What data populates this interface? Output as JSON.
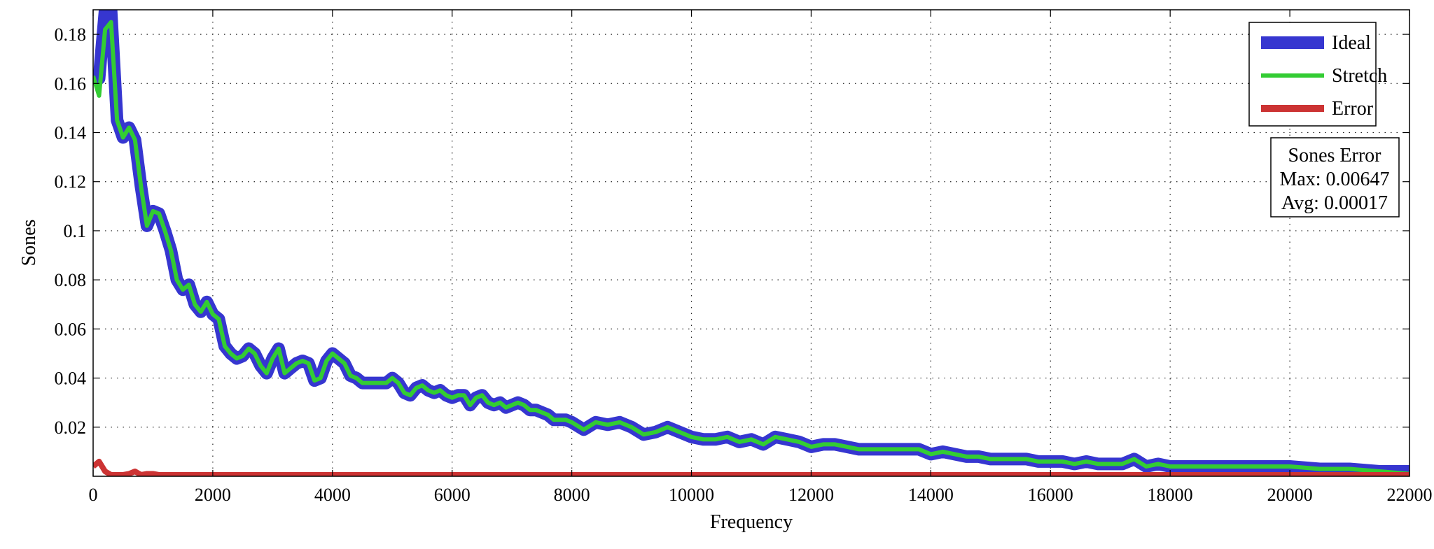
{
  "chart_data": {
    "type": "line",
    "xlabel": "Frequency",
    "ylabel": "Sones",
    "xlim": [
      0,
      22000
    ],
    "ylim": [
      0,
      0.19
    ],
    "grid": true,
    "legend_position": "top-right",
    "x_ticks": [
      0,
      2000,
      4000,
      6000,
      8000,
      10000,
      12000,
      14000,
      16000,
      18000,
      20000,
      22000
    ],
    "x_tick_labels": [
      "0",
      "2000",
      "4000",
      "6000",
      "8000",
      "10000",
      "12000",
      "14000",
      "16000",
      "18000",
      "20000",
      "22000"
    ],
    "y_ticks": [
      0.02,
      0.04,
      0.06,
      0.08,
      0.1,
      0.12,
      0.14,
      0.16,
      0.18
    ],
    "y_tick_labels": [
      "0.02",
      "0.04",
      "0.06",
      "0.08",
      "0.1",
      "0.12",
      "0.14",
      "0.16",
      "0.18"
    ],
    "x": [
      0,
      100,
      200,
      300,
      400,
      500,
      600,
      700,
      800,
      900,
      1000,
      1100,
      1200,
      1300,
      1400,
      1500,
      1600,
      1700,
      1800,
      1900,
      2000,
      2100,
      2200,
      2300,
      2400,
      2500,
      2600,
      2700,
      2800,
      2900,
      3000,
      3100,
      3200,
      3300,
      3400,
      3500,
      3600,
      3700,
      3800,
      3900,
      4000,
      4100,
      4200,
      4300,
      4400,
      4500,
      4600,
      4700,
      4800,
      4900,
      5000,
      5100,
      5200,
      5300,
      5400,
      5500,
      5600,
      5700,
      5800,
      5900,
      6000,
      6100,
      6200,
      6300,
      6400,
      6500,
      6600,
      6700,
      6800,
      6900,
      7000,
      7100,
      7200,
      7300,
      7400,
      7500,
      7600,
      7700,
      7800,
      7900,
      8000,
      8200,
      8400,
      8600,
      8800,
      9000,
      9200,
      9400,
      9600,
      9800,
      10000,
      10200,
      10400,
      10600,
      10800,
      11000,
      11200,
      11400,
      11600,
      11800,
      12000,
      12200,
      12400,
      12600,
      12800,
      13000,
      13200,
      13400,
      13600,
      13800,
      14000,
      14200,
      14400,
      14600,
      14800,
      15000,
      15200,
      15400,
      15600,
      15800,
      16000,
      16200,
      16400,
      16600,
      16800,
      17000,
      17200,
      17400,
      17600,
      17800,
      18000,
      18500,
      19000,
      19500,
      20000,
      20500,
      21000,
      21500,
      22000
    ],
    "series": [
      {
        "name": "Ideal",
        "color": "#3636d0",
        "values": [
          0.163,
          0.162,
          0.19,
          0.19,
          0.145,
          0.138,
          0.142,
          0.137,
          0.118,
          0.102,
          0.108,
          0.107,
          0.1,
          0.092,
          0.08,
          0.076,
          0.078,
          0.07,
          0.067,
          0.071,
          0.066,
          0.064,
          0.053,
          0.05,
          0.048,
          0.049,
          0.052,
          0.05,
          0.045,
          0.042,
          0.048,
          0.052,
          0.042,
          0.044,
          0.046,
          0.047,
          0.046,
          0.039,
          0.04,
          0.047,
          0.05,
          0.048,
          0.046,
          0.041,
          0.04,
          0.038,
          0.038,
          0.038,
          0.038,
          0.038,
          0.04,
          0.038,
          0.034,
          0.033,
          0.036,
          0.037,
          0.035,
          0.034,
          0.035,
          0.033,
          0.032,
          0.033,
          0.033,
          0.029,
          0.032,
          0.033,
          0.03,
          0.029,
          0.03,
          0.028,
          0.029,
          0.03,
          0.029,
          0.027,
          0.027,
          0.026,
          0.025,
          0.023,
          0.023,
          0.023,
          0.022,
          0.019,
          0.022,
          0.021,
          0.022,
          0.02,
          0.017,
          0.018,
          0.02,
          0.018,
          0.016,
          0.015,
          0.015,
          0.016,
          0.014,
          0.015,
          0.013,
          0.016,
          0.015,
          0.014,
          0.012,
          0.013,
          0.013,
          0.012,
          0.011,
          0.011,
          0.011,
          0.011,
          0.011,
          0.011,
          0.009,
          0.01,
          0.009,
          0.008,
          0.008,
          0.007,
          0.007,
          0.007,
          0.007,
          0.006,
          0.006,
          0.006,
          0.005,
          0.006,
          0.005,
          0.005,
          0.005,
          0.007,
          0.004,
          0.005,
          0.004,
          0.004,
          0.004,
          0.004,
          0.004,
          0.003,
          0.003,
          0.002,
          0.002
        ]
      },
      {
        "name": "Stretch",
        "color": "#33cc33",
        "values": [
          0.163,
          0.155,
          0.182,
          0.185,
          0.145,
          0.138,
          0.142,
          0.137,
          0.118,
          0.102,
          0.108,
          0.107,
          0.1,
          0.092,
          0.08,
          0.076,
          0.078,
          0.07,
          0.067,
          0.071,
          0.066,
          0.064,
          0.053,
          0.05,
          0.048,
          0.049,
          0.052,
          0.05,
          0.045,
          0.042,
          0.048,
          0.052,
          0.042,
          0.044,
          0.046,
          0.047,
          0.046,
          0.039,
          0.04,
          0.047,
          0.05,
          0.048,
          0.046,
          0.041,
          0.04,
          0.038,
          0.038,
          0.038,
          0.038,
          0.038,
          0.04,
          0.038,
          0.034,
          0.033,
          0.036,
          0.037,
          0.035,
          0.034,
          0.035,
          0.033,
          0.032,
          0.033,
          0.033,
          0.029,
          0.032,
          0.033,
          0.03,
          0.029,
          0.03,
          0.028,
          0.029,
          0.03,
          0.029,
          0.027,
          0.027,
          0.026,
          0.025,
          0.023,
          0.023,
          0.023,
          0.022,
          0.019,
          0.022,
          0.021,
          0.022,
          0.02,
          0.017,
          0.018,
          0.02,
          0.018,
          0.016,
          0.015,
          0.015,
          0.016,
          0.014,
          0.015,
          0.013,
          0.016,
          0.015,
          0.014,
          0.012,
          0.013,
          0.013,
          0.012,
          0.011,
          0.011,
          0.011,
          0.011,
          0.011,
          0.011,
          0.009,
          0.01,
          0.009,
          0.008,
          0.008,
          0.007,
          0.007,
          0.007,
          0.007,
          0.006,
          0.006,
          0.006,
          0.005,
          0.006,
          0.005,
          0.005,
          0.005,
          0.007,
          0.004,
          0.005,
          0.004,
          0.004,
          0.004,
          0.004,
          0.004,
          0.003,
          0.003,
          0.002,
          0.001
        ]
      },
      {
        "name": "Error",
        "color": "#cc3333",
        "values": [
          0.004,
          0.006,
          0.002,
          0.0,
          0.0,
          0.0,
          0.001,
          0.002,
          0.0,
          0.001,
          0.001,
          0.0,
          0.0,
          0.0,
          0.0,
          0.0,
          0.0,
          0.0,
          0.0,
          0.0,
          0.0,
          0.0,
          0.0,
          0.0,
          0.0,
          0.0,
          0.0,
          0.0,
          0.0,
          0.0,
          0.0,
          0.0,
          0.0,
          0.0,
          0.0,
          0.0,
          0.0,
          0.0,
          0.0,
          0.0,
          0.0,
          0.0,
          0.0,
          0.0,
          0.0,
          0.0,
          0.0,
          0.0,
          0.0,
          0.0,
          0.0,
          0.0,
          0.0,
          0.0,
          0.0,
          0.0,
          0.0,
          0.0,
          0.0,
          0.0,
          0.0,
          0.0,
          0.0,
          0.0,
          0.0,
          0.0,
          0.0,
          0.0,
          0.0,
          0.0,
          0.0,
          0.0,
          0.0,
          0.0,
          0.0,
          0.0,
          0.0,
          0.0,
          0.0,
          0.0,
          0.0,
          0.0,
          0.0,
          0.0,
          0.0,
          0.0,
          0.0,
          0.0,
          0.0,
          0.0,
          0.0,
          0.0,
          0.0,
          0.0,
          0.0,
          0.0,
          0.0,
          0.0,
          0.0,
          0.0,
          0.0,
          0.0,
          0.0,
          0.0,
          0.0,
          0.0,
          0.0,
          0.0,
          0.0,
          0.0,
          0.0,
          0.0,
          0.0,
          0.0,
          0.0,
          0.0,
          0.0,
          0.0,
          0.0,
          0.0,
          0.0,
          0.0,
          0.0,
          0.0,
          0.0,
          0.0,
          0.0,
          0.0,
          0.0,
          0.0,
          0.0,
          0.0,
          0.0,
          0.0,
          0.0,
          0.0,
          0.0,
          0.0,
          0.0
        ]
      }
    ],
    "annotation": {
      "title": "Sones Error",
      "max": "Max: 0.00647",
      "avg": "Avg: 0.00017"
    }
  }
}
